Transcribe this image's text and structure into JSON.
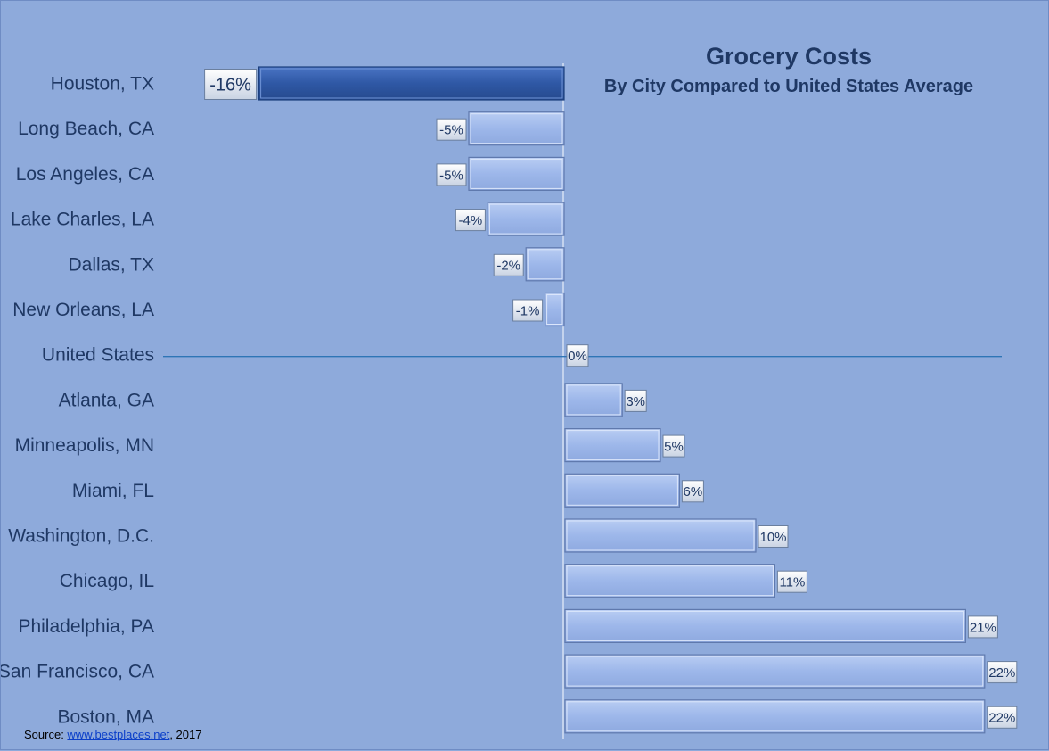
{
  "chart_data": {
    "type": "bar",
    "orientation": "horizontal",
    "title": "Grocery Costs",
    "subtitle": "By City Compared to United States Average",
    "categories": [
      "Houston, TX",
      "Long Beach, CA",
      "Los Angeles,  CA",
      "Lake Charles, LA",
      "Dallas, TX",
      "New Orleans, LA",
      "United States",
      "Atlanta, GA",
      "Minneapolis, MN",
      "Miami, FL",
      "Washington, D.C.",
      "Chicago, IL",
      "Philadelphia, PA",
      "San Francisco, CA",
      "Boston, MA"
    ],
    "values": [
      -16,
      -5,
      -5,
      -4,
      -2,
      -1,
      0,
      3,
      5,
      6,
      10,
      11,
      21,
      22,
      22
    ],
    "data_labels": [
      "-16%",
      "-5%",
      "-5%",
      "-4%",
      "-2%",
      "-1%",
      "0%",
      "3%",
      "5%",
      "6%",
      "10%",
      "11%",
      "21%",
      "22%",
      "22%"
    ],
    "unit": "%",
    "xlim": [
      -20,
      23
    ],
    "highlight_category": "Houston, TX",
    "reference_line_category": "United States",
    "colors": {
      "background": "#8eaadb",
      "bar": "#9db7ea",
      "bar_highlight": "#2f58a5",
      "text": "#1f3864",
      "reference_line": "#2e75b6"
    }
  },
  "source": {
    "prefix": "Source: ",
    "link_text": "www.bestplaces.net",
    "suffix": ", 2017"
  }
}
